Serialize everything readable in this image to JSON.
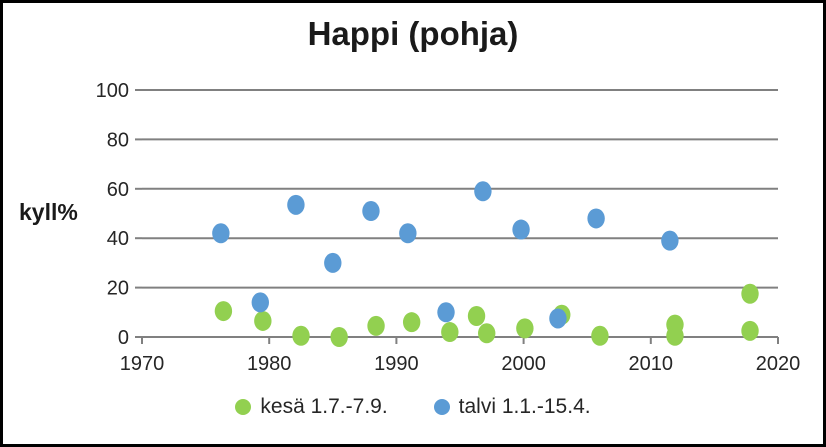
{
  "title": "Happi (pohja)",
  "colors": {
    "kesa_green": "#92D050",
    "talvi_blue": "#5B9BD5",
    "gridline_gray": "#808080",
    "axis_text": "#262626",
    "title_text": "#1a1a1a",
    "frame_border": "#000000",
    "background": "#ffffff"
  },
  "legend": {
    "items": [
      {
        "label": "kesä 1.7.-7.9.",
        "color": "#92D050",
        "marker": "circle-icon"
      },
      {
        "label": "talvi 1.1.-15.4.",
        "color": "#5B9BD5",
        "marker": "circle-icon"
      }
    ],
    "position": "bottom-center"
  },
  "chart_data": {
    "type": "scatter",
    "title": "Happi (pohja)",
    "xlabel": "",
    "ylabel": "kyll%",
    "xlim": [
      1970,
      2020
    ],
    "ylim": [
      0,
      100
    ],
    "x_ticks": [
      1970,
      1980,
      1990,
      2000,
      2010,
      2020
    ],
    "y_ticks": [
      0,
      20,
      40,
      60,
      80,
      100
    ],
    "grid": "horizontal-only",
    "legend_position": "bottom",
    "marker_style": "filled-circle",
    "series": [
      {
        "name": "kesä 1.7.-7.9.",
        "color": "#92D050",
        "points": [
          [
            1976.4,
            10.5
          ],
          [
            1979.5,
            6.5
          ],
          [
            1982.5,
            0.5
          ],
          [
            1985.5,
            0
          ],
          [
            1988.4,
            4.5
          ],
          [
            1991.2,
            6
          ],
          [
            1994.2,
            2
          ],
          [
            1996.3,
            8.5
          ],
          [
            1997.1,
            1.5
          ],
          [
            2000.1,
            3.5
          ],
          [
            2003.0,
            9
          ],
          [
            2006.0,
            0.5
          ],
          [
            2011.9,
            5
          ],
          [
            2011.9,
            0.5
          ],
          [
            2017.8,
            17.5
          ],
          [
            2017.8,
            2.5
          ]
        ]
      },
      {
        "name": "talvi 1.1.-15.4.",
        "color": "#5B9BD5",
        "points": [
          [
            1976.2,
            42
          ],
          [
            1979.3,
            14
          ],
          [
            1982.1,
            53.5
          ],
          [
            1985.0,
            30
          ],
          [
            1988.0,
            51
          ],
          [
            1990.9,
            42
          ],
          [
            1993.9,
            10
          ],
          [
            1996.8,
            59
          ],
          [
            1999.8,
            43.5
          ],
          [
            2002.7,
            7.5
          ],
          [
            2005.7,
            48
          ],
          [
            2011.5,
            39
          ]
        ]
      }
    ]
  }
}
